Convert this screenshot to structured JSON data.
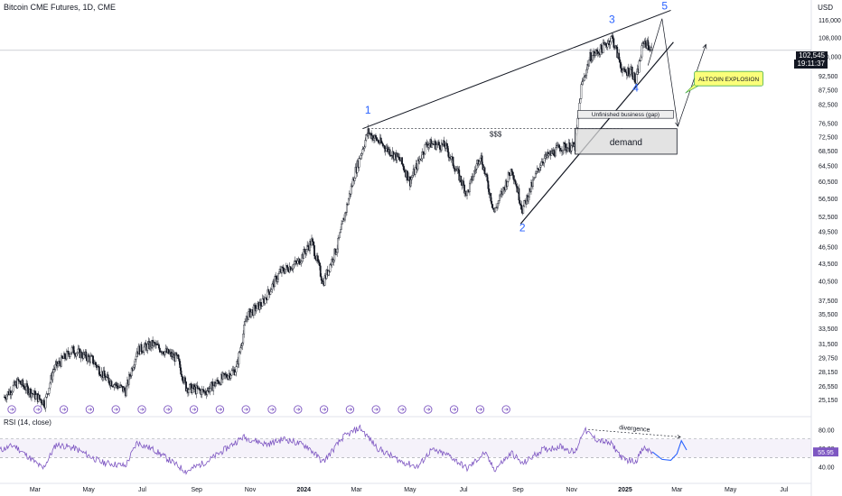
{
  "header": {
    "title": "Bitcoin CME Futures, 1D, CME",
    "currency": "USD"
  },
  "price_tag": {
    "price": "102,545",
    "countdown": "19:11:37"
  },
  "rsi_label": "RSI (14, close)",
  "chart_data": [
    {
      "type": "candlestick",
      "title": "Bitcoin CME Futures, 1D, CME",
      "ylabel": "USD",
      "y_scale": "log",
      "ylim": [
        24500,
        122000
      ],
      "y_ticks": [
        "116,000",
        "108,000",
        "100,000",
        "92,500",
        "87,500",
        "82,500",
        "76,500",
        "72,500",
        "68,500",
        "64,500",
        "60,500",
        "56,500",
        "52,500",
        "49,500",
        "46,500",
        "43,500",
        "40,500",
        "37,500",
        "35,500",
        "33,500",
        "31,500",
        "29,750",
        "28,150",
        "26,550",
        "25,150"
      ],
      "x_ticks": [
        "Mar",
        "May",
        "Jul",
        "Sep",
        "Nov",
        "2024",
        "Mar",
        "May",
        "Jul",
        "Sep",
        "Nov",
        "2025",
        "Mar",
        "May",
        "Jul"
      ],
      "x_tick_dates": [
        "2023-03-01",
        "2023-05-01",
        "2023-07-01",
        "2023-09-01",
        "2023-11-01",
        "2024-01-01",
        "2024-03-01",
        "2024-05-01",
        "2024-07-01",
        "2024-09-01",
        "2024-11-01",
        "2025-01-01",
        "2025-03-01",
        "2025-05-01",
        "2025-07-01"
      ],
      "xlim": [
        "2023-01-20",
        "2025-08-01"
      ],
      "price_path": [
        {
          "date": "2023-01-25",
          "close": 25400
        },
        {
          "date": "2023-02-10",
          "close": 27000
        },
        {
          "date": "2023-02-28",
          "close": 25600
        },
        {
          "date": "2023-03-12",
          "close": 24800
        },
        {
          "date": "2023-03-22",
          "close": 28400
        },
        {
          "date": "2023-04-12",
          "close": 30700
        },
        {
          "date": "2023-05-05",
          "close": 29500
        },
        {
          "date": "2023-05-20",
          "close": 27400
        },
        {
          "date": "2023-06-12",
          "close": 26000
        },
        {
          "date": "2023-06-25",
          "close": 30600
        },
        {
          "date": "2023-07-13",
          "close": 31400
        },
        {
          "date": "2023-08-10",
          "close": 29600
        },
        {
          "date": "2023-08-20",
          "close": 26400
        },
        {
          "date": "2023-09-10",
          "close": 25900
        },
        {
          "date": "2023-09-28",
          "close": 27200
        },
        {
          "date": "2023-10-16",
          "close": 28400
        },
        {
          "date": "2023-10-28",
          "close": 35200
        },
        {
          "date": "2023-11-15",
          "close": 37100
        },
        {
          "date": "2023-12-05",
          "close": 42000
        },
        {
          "date": "2023-12-25",
          "close": 43600
        },
        {
          "date": "2024-01-10",
          "close": 47500
        },
        {
          "date": "2024-01-23",
          "close": 40200
        },
        {
          "date": "2024-02-08",
          "close": 46500
        },
        {
          "date": "2024-02-28",
          "close": 62500
        },
        {
          "date": "2024-03-14",
          "close": 73800
        },
        {
          "date": "2024-04-01",
          "close": 69800
        },
        {
          "date": "2024-04-20",
          "close": 65800
        },
        {
          "date": "2024-05-01",
          "close": 60500
        },
        {
          "date": "2024-05-20",
          "close": 70500
        },
        {
          "date": "2024-06-10",
          "close": 69800
        },
        {
          "date": "2024-07-05",
          "close": 57500
        },
        {
          "date": "2024-07-20",
          "close": 67500
        },
        {
          "date": "2024-08-05",
          "close": 53500
        },
        {
          "date": "2024-08-25",
          "close": 63800
        },
        {
          "date": "2024-09-06",
          "close": 54000
        },
        {
          "date": "2024-09-28",
          "close": 65800
        },
        {
          "date": "2024-10-20",
          "close": 69500
        },
        {
          "date": "2024-11-05",
          "close": 69500
        },
        {
          "date": "2024-11-12",
          "close": 88500
        },
        {
          "date": "2024-11-22",
          "close": 99800
        },
        {
          "date": "2024-12-05",
          "close": 103000
        },
        {
          "date": "2024-12-17",
          "close": 108000
        },
        {
          "date": "2024-12-30",
          "close": 93500
        },
        {
          "date": "2025-01-08",
          "close": 95000
        },
        {
          "date": "2025-01-13",
          "close": 90000
        },
        {
          "date": "2025-01-22",
          "close": 106500
        },
        {
          "date": "2025-02-01",
          "close": 102545
        }
      ],
      "last_price": 102545,
      "annotations": {
        "wave_labels": [
          {
            "text": "1",
            "date": "2024-03-14",
            "price": 79500
          },
          {
            "text": "2",
            "date": "2024-09-06",
            "price": 49500
          },
          {
            "text": "3",
            "date": "2024-12-17",
            "price": 114500
          },
          {
            "text": "4",
            "date": "2025-01-13",
            "price": 86800
          },
          {
            "text": "5",
            "date": "2025-02-15",
            "price": 121000
          }
        ],
        "upper_trendline": [
          {
            "date": "2024-03-08",
            "price": 74800
          },
          {
            "date": "2025-02-22",
            "price": 120500
          }
        ],
        "lower_trendline": [
          {
            "date": "2024-09-04",
            "price": 51000
          },
          {
            "date": "2025-02-25",
            "price": 106000
          }
        ],
        "liquidity_line": {
          "label": "$$$",
          "price": 74800,
          "from": "2024-03-14",
          "to": "2024-12-30"
        },
        "demand_zone": {
          "label": "demand",
          "top": 74800,
          "bottom": 67500,
          "from": "2024-11-05",
          "to": "2025-03-01"
        },
        "gap_box": {
          "label": "Unfinished business (gap)",
          "top": 80500,
          "bottom": 78000,
          "from": "2024-11-08",
          "to": "2025-02-25"
        },
        "projection_path": [
          {
            "date": "2025-01-27",
            "price": 96500
          },
          {
            "date": "2025-02-12",
            "price": 116500
          },
          {
            "date": "2025-03-02",
            "price": 75500
          },
          {
            "date": "2025-04-03",
            "price": 105000
          }
        ],
        "callout": {
          "text": "ALTCOIN EXPLOSION",
          "date": "2025-03-25",
          "price": 91500,
          "color": "#fbff7a"
        }
      },
      "colors": {
        "candle": "#131722",
        "annotation_label": "#2962ff",
        "demand_fill": "#d9d9d9",
        "callout_fill": "#fbff7a"
      }
    },
    {
      "type": "line",
      "title": "RSI (14, close)",
      "ylim": [
        30,
        88
      ],
      "y_ticks": [
        "80.00",
        "60.00",
        "40.00"
      ],
      "bands": {
        "upper": 70,
        "lower": 50
      },
      "last_value": "55.95",
      "series": [
        {
          "name": "RSI",
          "color": "#7e57c2",
          "points": [
            {
              "date": "2023-01-20",
              "value": 58
            },
            {
              "date": "2023-02-05",
              "value": 63
            },
            {
              "date": "2023-02-25",
              "value": 48
            },
            {
              "date": "2023-03-10",
              "value": 38
            },
            {
              "date": "2023-03-25",
              "value": 64
            },
            {
              "date": "2023-04-15",
              "value": 60
            },
            {
              "date": "2023-05-15",
              "value": 45
            },
            {
              "date": "2023-06-12",
              "value": 41
            },
            {
              "date": "2023-06-25",
              "value": 66
            },
            {
              "date": "2023-07-15",
              "value": 58
            },
            {
              "date": "2023-08-20",
              "value": 35
            },
            {
              "date": "2023-09-15",
              "value": 47
            },
            {
              "date": "2023-10-24",
              "value": 72
            },
            {
              "date": "2023-11-20",
              "value": 64
            },
            {
              "date": "2023-12-10",
              "value": 70
            },
            {
              "date": "2024-01-05",
              "value": 62
            },
            {
              "date": "2024-01-23",
              "value": 45
            },
            {
              "date": "2024-02-15",
              "value": 72
            },
            {
              "date": "2024-03-05",
              "value": 82
            },
            {
              "date": "2024-03-25",
              "value": 60
            },
            {
              "date": "2024-04-20",
              "value": 46
            },
            {
              "date": "2024-05-10",
              "value": 40
            },
            {
              "date": "2024-05-25",
              "value": 58
            },
            {
              "date": "2024-06-15",
              "value": 52
            },
            {
              "date": "2024-07-05",
              "value": 38
            },
            {
              "date": "2024-07-25",
              "value": 55
            },
            {
              "date": "2024-08-05",
              "value": 37
            },
            {
              "date": "2024-08-25",
              "value": 55
            },
            {
              "date": "2024-09-06",
              "value": 43
            },
            {
              "date": "2024-09-28",
              "value": 58
            },
            {
              "date": "2024-10-20",
              "value": 62
            },
            {
              "date": "2024-11-05",
              "value": 55
            },
            {
              "date": "2024-11-15",
              "value": 80
            },
            {
              "date": "2024-11-28",
              "value": 70
            },
            {
              "date": "2024-12-17",
              "value": 64
            },
            {
              "date": "2024-12-30",
              "value": 48
            },
            {
              "date": "2025-01-13",
              "value": 46
            },
            {
              "date": "2025-01-22",
              "value": 60
            },
            {
              "date": "2025-02-01",
              "value": 56
            }
          ]
        },
        {
          "name": "RSI projection",
          "color": "#2962ff",
          "points": [
            {
              "date": "2025-02-01",
              "value": 56
            },
            {
              "date": "2025-02-12",
              "value": 48
            },
            {
              "date": "2025-02-22",
              "value": 47
            },
            {
              "date": "2025-03-01",
              "value": 54
            },
            {
              "date": "2025-03-06",
              "value": 68
            },
            {
              "date": "2025-03-12",
              "value": 58
            }
          ]
        }
      ],
      "annotations": {
        "divergence_label": "divergence",
        "divergence_arrow": [
          {
            "date": "2024-11-20",
            "value": 80
          },
          {
            "date": "2025-03-05",
            "value": 72
          }
        ]
      }
    }
  ]
}
